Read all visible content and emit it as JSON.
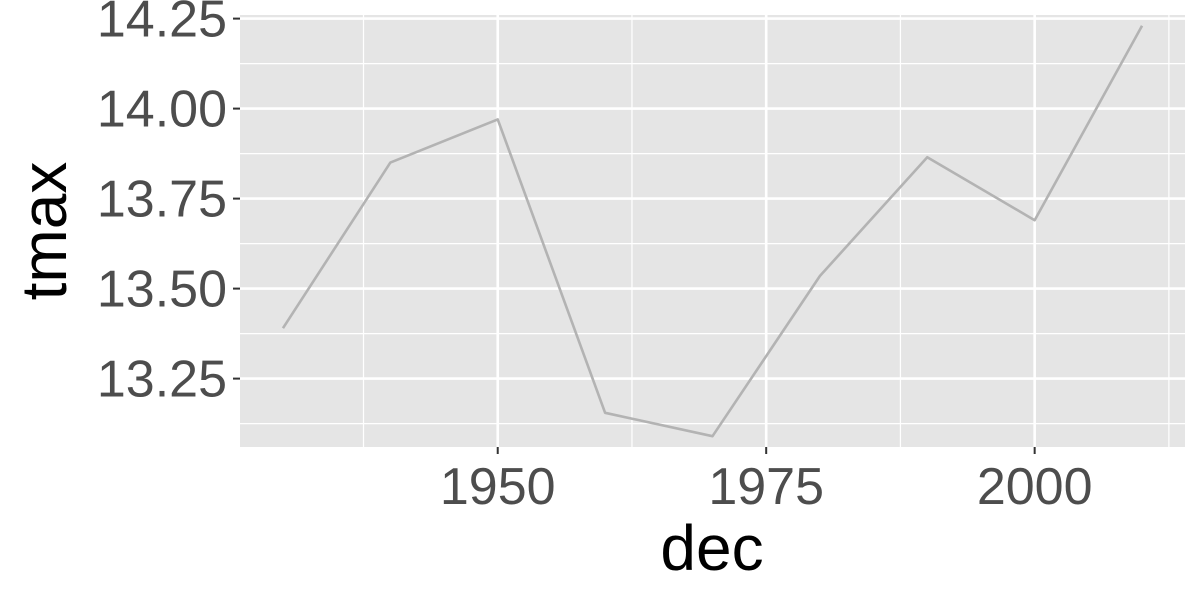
{
  "chart_data": {
    "type": "line",
    "xlabel": "dec",
    "ylabel": "tmax",
    "x": [
      1930,
      1940,
      1950,
      1960,
      1970,
      1980,
      1990,
      2000,
      2010
    ],
    "y": [
      13.39,
      13.85,
      13.97,
      13.155,
      13.09,
      13.535,
      13.865,
      13.69,
      14.23
    ],
    "xlim": [
      1926,
      2014
    ],
    "ylim": [
      13.06,
      14.26
    ],
    "x_ticks": [
      1950,
      1975,
      2000
    ],
    "x_tick_labels": [
      "1950",
      "1975",
      "2000"
    ],
    "y_ticks": [
      13.25,
      13.5,
      13.75,
      14.0,
      14.25
    ],
    "y_tick_labels": [
      "13.25",
      "13.50",
      "13.75",
      "14.00",
      "14.25"
    ],
    "x_minor_ticks": [
      1937.5,
      1962.5,
      1987.5,
      2012.5
    ],
    "y_minor_ticks": [
      13.125,
      13.375,
      13.625,
      13.875,
      14.125
    ],
    "grid": true,
    "colors": {
      "panel_background": "#e5e5e5",
      "grid_line": "#ffffff",
      "series_line": "#b3b3b3",
      "tick_mark": "#333333",
      "tick_label": "#4d4d4d",
      "axis_title": "#000000"
    }
  }
}
